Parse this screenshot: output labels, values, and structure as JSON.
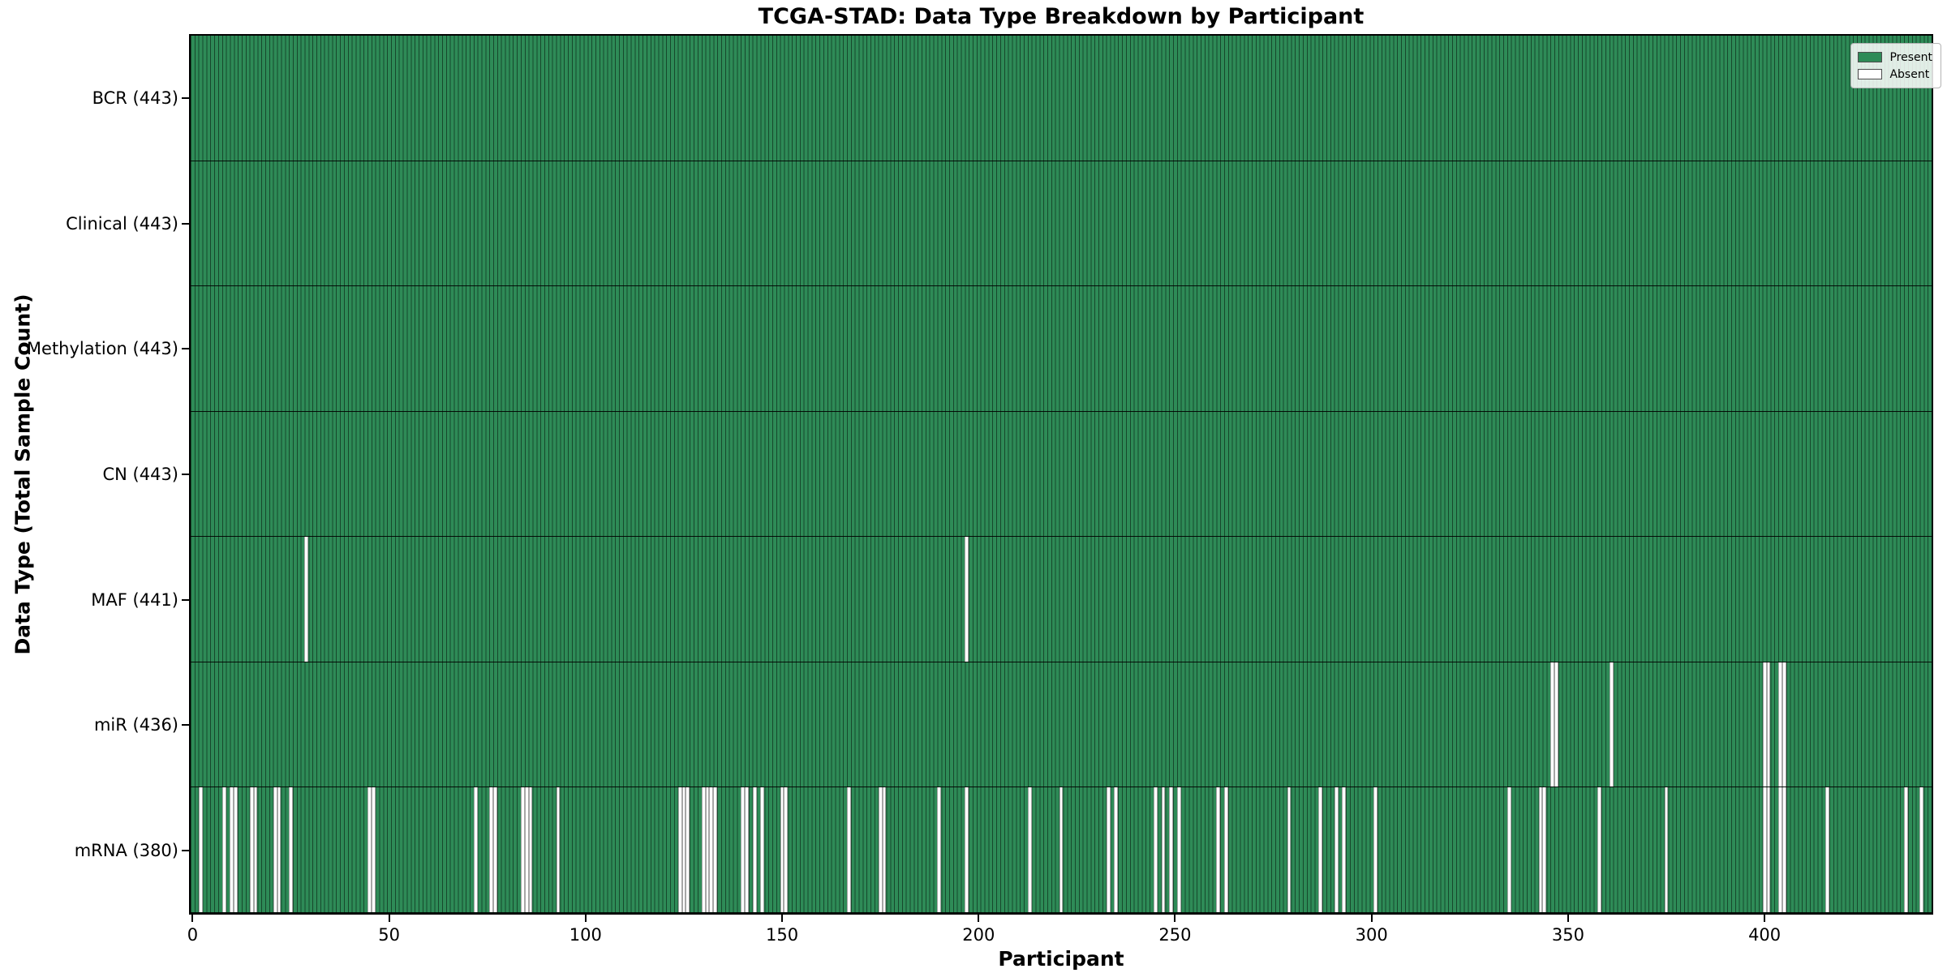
{
  "chart_data": {
    "type": "heatmap",
    "title": "TCGA-STAD: Data Type Breakdown by Participant",
    "xlabel": "Participant",
    "ylabel": "Data Type (Total Sample Count)",
    "n_participants": 443,
    "x_tick_values": [
      0,
      50,
      100,
      150,
      200,
      250,
      300,
      350,
      400
    ],
    "x_tick_labels": [
      "0",
      "50",
      "100",
      "150",
      "200",
      "250",
      "300",
      "350",
      "400"
    ],
    "grid": false,
    "legend": {
      "position": "upper right",
      "entries": [
        {
          "label": "Present",
          "color": "#2e8b57"
        },
        {
          "label": "Absent",
          "color": "#ffffff"
        }
      ]
    },
    "rows": [
      {
        "label": "BCR",
        "display": "BCR (443)",
        "present_count": 443,
        "absent_count": 0,
        "absent_participants": []
      },
      {
        "label": "Clinical",
        "display": "Clinical (443)",
        "present_count": 443,
        "absent_count": 0,
        "absent_participants": []
      },
      {
        "label": "Methylation",
        "display": "Methylation (443)",
        "present_count": 443,
        "absent_count": 0,
        "absent_participants": []
      },
      {
        "label": "CN",
        "display": "CN (443)",
        "present_count": 443,
        "absent_count": 0,
        "absent_participants": []
      },
      {
        "label": "MAF",
        "display": "MAF (441)",
        "present_count": 441,
        "absent_count": 2,
        "absent_participants": [
          29,
          197
        ]
      },
      {
        "label": "miR",
        "display": "miR (436)",
        "present_count": 436,
        "absent_count": 7,
        "absent_participants": [
          346,
          347,
          361,
          400,
          401,
          404,
          405
        ]
      },
      {
        "label": "mRNA",
        "display": "mRNA (380)",
        "present_count": 380,
        "absent_count": 63,
        "absent_participants": [
          2,
          8,
          10,
          11,
          15,
          16,
          21,
          22,
          25,
          45,
          46,
          72,
          76,
          77,
          84,
          85,
          86,
          93,
          124,
          125,
          126,
          130,
          131,
          132,
          133,
          140,
          141,
          143,
          145,
          150,
          151,
          167,
          175,
          176,
          190,
          197,
          213,
          221,
          233,
          235,
          245,
          247,
          249,
          251,
          261,
          263,
          279,
          287,
          291,
          293,
          301,
          335,
          343,
          344,
          358,
          375,
          400,
          401,
          404,
          405,
          416,
          436,
          440
        ]
      }
    ],
    "colors": {
      "present": "#2e8b57",
      "cell_edge": "#17482c",
      "absent": "#ffffff",
      "row_divider": "#000000",
      "frame": "#000000"
    }
  }
}
